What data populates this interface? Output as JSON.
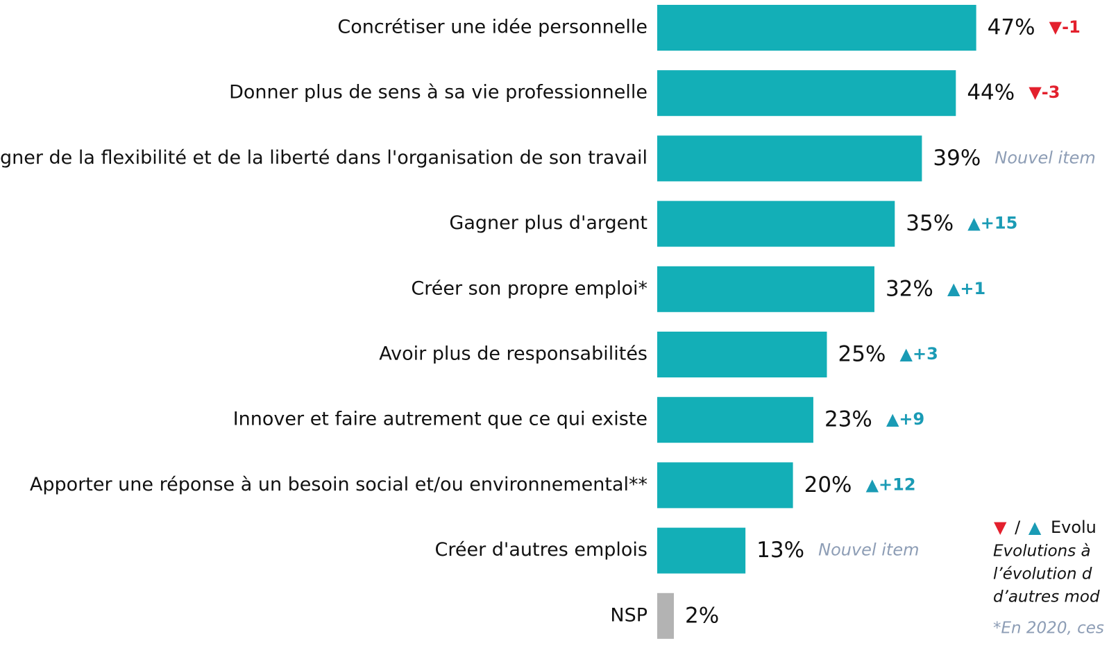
{
  "chart_data": {
    "type": "bar",
    "orientation": "horizontal",
    "categories": [
      "Concrétiser une idée personnelle",
      "Donner plus de sens à sa vie professionnelle",
      "Gagner de la flexibilité et de la liberté dans l'organisation de son travail",
      "Gagner plus d'argent",
      "Créer son propre emploi*",
      "Avoir plus de responsabilités",
      "Innover et faire autrement que ce qui existe",
      "Apporter une réponse à un besoin social et/ou environnemental**",
      "Créer d'autres emplois",
      "NSP"
    ],
    "values": [
      47,
      44,
      39,
      35,
      32,
      25,
      23,
      20,
      13,
      2
    ],
    "value_labels": [
      "47%",
      "44%",
      "39%",
      "35%",
      "32%",
      "25%",
      "23%",
      "20%",
      "13%",
      "2%"
    ],
    "colors": [
      "#13afb7",
      "#13afb7",
      "#13afb7",
      "#13afb7",
      "#13afb7",
      "#13afb7",
      "#13afb7",
      "#13afb7",
      "#13afb7",
      "#b3b3b3"
    ],
    "changes": [
      {
        "label": "▼-1",
        "color": "#e3202d"
      },
      {
        "label": "▼-3",
        "color": "#e3202d"
      },
      {
        "label": "Nouvel item",
        "color": "#8d9db5",
        "italic": true
      },
      {
        "label": "▲+15",
        "color": "#1a9bb5"
      },
      {
        "label": "▲+1",
        "color": "#1a9bb5"
      },
      {
        "label": "▲+3",
        "color": "#1a9bb5"
      },
      {
        "label": "▲+9",
        "color": "#1a9bb5"
      },
      {
        "label": "▲+12",
        "color": "#1a9bb5"
      },
      {
        "label": "Nouvel item",
        "color": "#8d9db5",
        "italic": true
      },
      null
    ],
    "legend": [
      "▼",
      "/",
      "▲",
      "Evolu"
    ],
    "notes": [
      "Evolutions à",
      "l’évolution d",
      "d’autres mod"
    ],
    "footnote": "*En 2020, ces"
  }
}
